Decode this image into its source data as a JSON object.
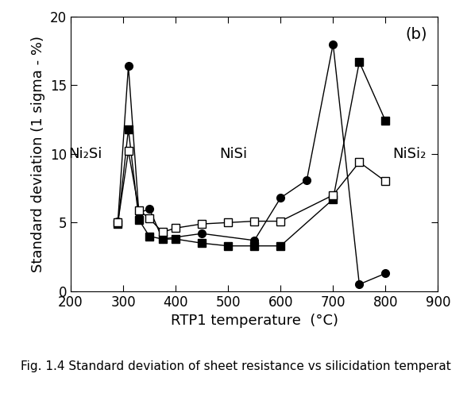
{
  "chart_data": {
    "type": "line",
    "title": "(b)",
    "x_label": "RTP1 temperature  (°C)",
    "y_label": "Standard deviation (1 sigma - %)",
    "caption": "Fig. 1.4 Standard deviation of sheet resistance vs silicidation temperat",
    "xlim": [
      200,
      900
    ],
    "xticks": [
      200,
      300,
      400,
      500,
      600,
      700,
      800,
      900
    ],
    "ylim": [
      0,
      20
    ],
    "yticks": [
      0,
      5,
      10,
      15,
      20
    ],
    "grid": false,
    "annotations": [
      {
        "text": "Ni₂Si",
        "x": 228,
        "y": 10
      },
      {
        "text": "NiSi",
        "x": 510,
        "y": 10
      },
      {
        "text": "NiSi₂",
        "x": 845,
        "y": 10
      }
    ],
    "series": [
      {
        "color": "#000000",
        "marker": "filled_circle",
        "line_style": "solid",
        "x": [
          290,
          310,
          330,
          350,
          375,
          450,
          550,
          600,
          650,
          700,
          750,
          800
        ],
        "values": [
          5.1,
          16.4,
          5.7,
          6.0,
          3.8,
          4.2,
          3.7,
          6.8,
          8.1,
          18.0,
          0.5,
          1.3
        ]
      },
      {
        "color": "#000000",
        "marker": "filled_square",
        "line_style": "solid",
        "x": [
          290,
          310,
          330,
          350,
          375,
          400,
          450,
          500,
          550,
          600,
          700,
          750,
          800
        ],
        "values": [
          4.9,
          11.8,
          5.2,
          4.0,
          3.8,
          3.8,
          3.5,
          3.3,
          3.3,
          3.3,
          6.7,
          16.7,
          12.4
        ]
      },
      {
        "color": "#000000",
        "marker": "open_square",
        "line_style": "solid",
        "x": [
          290,
          310,
          330,
          350,
          375,
          400,
          450,
          500,
          550,
          600,
          700,
          750,
          800
        ],
        "values": [
          5.0,
          10.2,
          5.9,
          5.3,
          4.3,
          4.6,
          4.9,
          5.0,
          5.1,
          5.1,
          7.0,
          9.4,
          8.0
        ]
      }
    ]
  }
}
